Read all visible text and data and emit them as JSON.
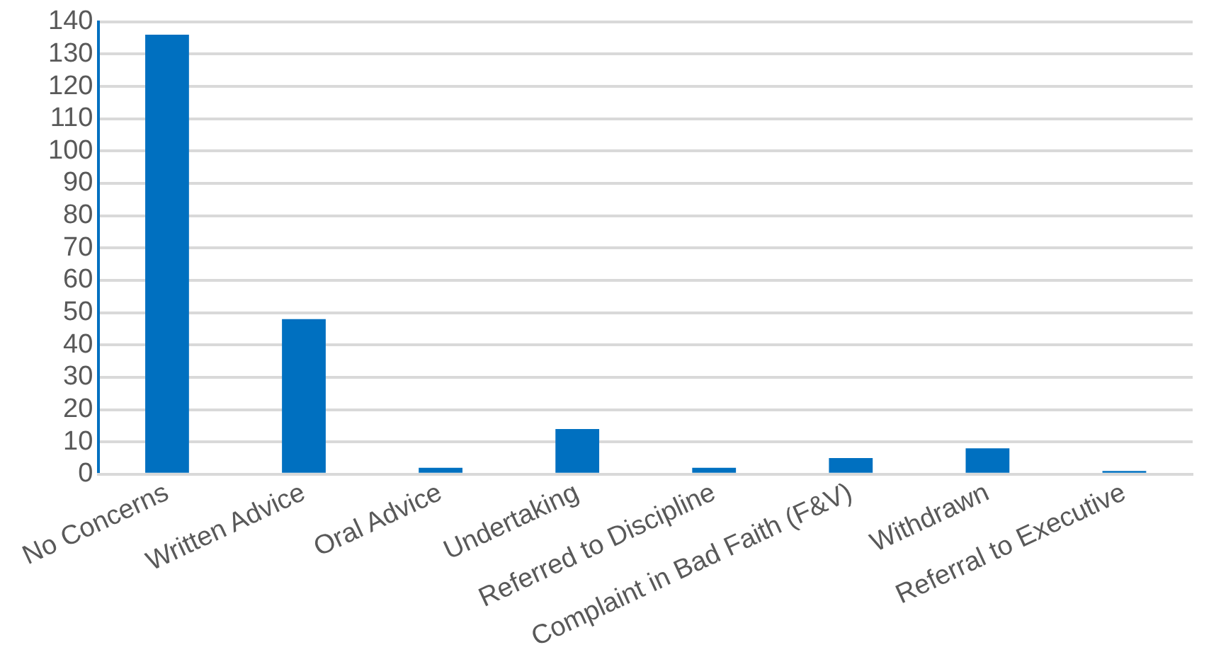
{
  "chart_data": {
    "type": "bar",
    "categories": [
      "No Concerns",
      "Written Advice",
      "Oral Advice",
      "Undertaking",
      "Referred to Discipline",
      "Complaint in Bad Faith (F&V)",
      "Withdrawn",
      "Referral to Executive"
    ],
    "values": [
      136,
      48,
      2,
      14,
      2,
      5,
      8,
      1
    ],
    "color": "#0070c0",
    "ylim": [
      0,
      140
    ],
    "yticks": [
      0,
      10,
      20,
      30,
      40,
      50,
      60,
      70,
      80,
      90,
      100,
      110,
      120,
      130,
      140
    ],
    "grid": "y",
    "legend": false
  }
}
